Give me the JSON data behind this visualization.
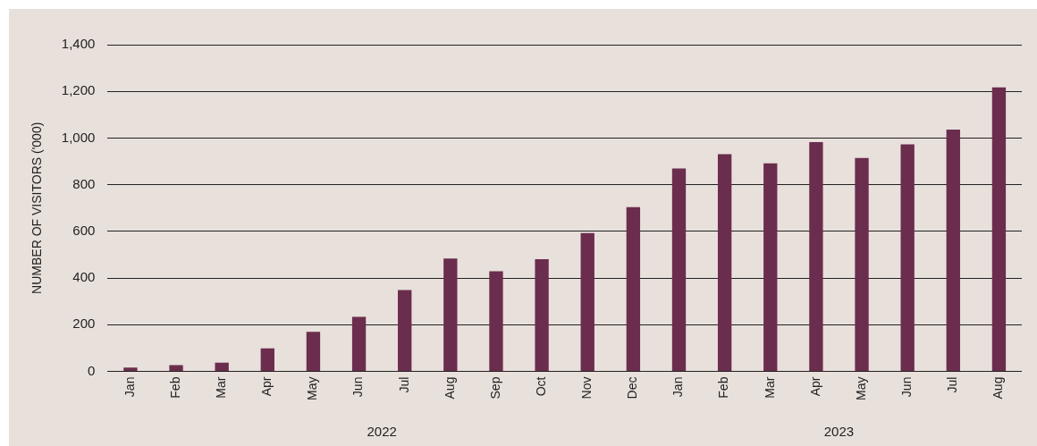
{
  "chart_data": {
    "type": "bar",
    "ylabel": "NUMBER OF VISITORS ('000)",
    "categories": [
      "Jan",
      "Feb",
      "Mar",
      "Apr",
      "May",
      "Jun",
      "Jul",
      "Aug",
      "Sep",
      "Oct",
      "Nov",
      "Dec",
      "Jan",
      "Feb",
      "Mar",
      "Apr",
      "May",
      "Jun",
      "Jul",
      "Aug"
    ],
    "values": [
      16,
      27,
      38,
      99,
      170,
      234,
      349,
      484,
      429,
      481,
      593,
      704,
      870,
      931,
      892,
      983,
      915,
      973,
      1036,
      1217
    ],
    "color": "#6b2d4e",
    "ylim": [
      0,
      1400
    ],
    "yticks": [
      {
        "value": 0,
        "label": "0"
      },
      {
        "value": 200,
        "label": "200"
      },
      {
        "value": 400,
        "label": "400"
      },
      {
        "value": 600,
        "label": "600"
      },
      {
        "value": 800,
        "label": "800"
      },
      {
        "value": 1000,
        "label": "1,000"
      },
      {
        "value": 1200,
        "label": "1,200"
      },
      {
        "value": 1400,
        "label": "1,400"
      }
    ],
    "grid": "y",
    "legend": false,
    "annotations": [
      "2022",
      "2023"
    ]
  }
}
